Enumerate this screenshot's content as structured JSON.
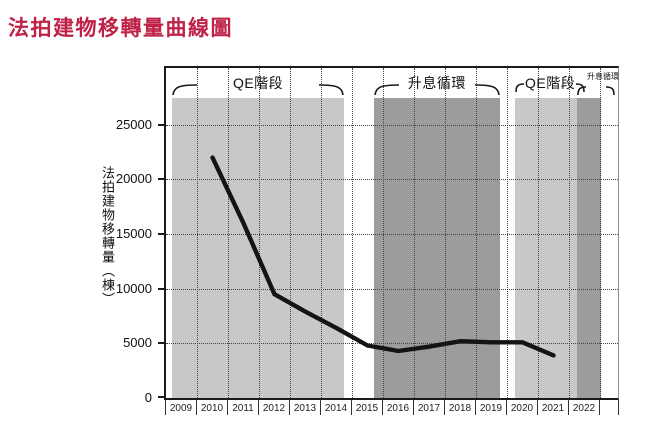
{
  "page_title": "法拍建物移轉量曲線圖",
  "colors": {
    "title_text": "#bf2147",
    "band_light": "#c8c8c8",
    "band_dark": "#9c9c9c",
    "line": "#141414"
  },
  "chart_data": {
    "type": "line",
    "title": "法拍建物移轉量曲線圖",
    "xlabel": "",
    "ylabel": "法拍建物移轉量（棟）",
    "x_categories": [
      "2009",
      "2010",
      "2011",
      "2012",
      "2013",
      "2014",
      "2015",
      "2016",
      "2017",
      "2018",
      "2019",
      "2020",
      "2021",
      "2022"
    ],
    "y_ticks": [
      0,
      5000,
      10000,
      15000,
      20000,
      25000
    ],
    "ylim": [
      0,
      30200
    ],
    "grid": {
      "horizontal": "dotted",
      "vertical": "dotted"
    },
    "legend": "none",
    "series": [
      {
        "name": "法拍建物移轉量",
        "points": [
          {
            "year": 2010,
            "value": 22000
          },
          {
            "year": 2011,
            "value": 16000
          },
          {
            "year": 2012,
            "value": 9500
          },
          {
            "year": 2013,
            "value": 7900
          },
          {
            "year": 2014,
            "value": 6400
          },
          {
            "year": 2015,
            "value": 4800
          },
          {
            "year": 2016,
            "value": 4300
          },
          {
            "year": 2017,
            "value": 4700
          },
          {
            "year": 2018,
            "value": 5200
          },
          {
            "year": 2019,
            "value": 5100
          },
          {
            "year": 2020,
            "value": 5100
          },
          {
            "year": 2021,
            "value": 3900
          }
        ]
      }
    ],
    "bands": [
      {
        "label": "QE階段",
        "tone": "light",
        "from_year": 2009.2,
        "to_year": 2014.74
      },
      {
        "label": "升息循環",
        "tone": "dark",
        "from_year": 2015.71,
        "to_year": 2019.77
      },
      {
        "label": "QE階段",
        "tone": "light",
        "from_year": 2020.26,
        "to_year": 2022.26
      },
      {
        "label": "升息循環",
        "tone": "dark",
        "from_year": 2022.26,
        "to_year": 2023.03,
        "small_label": true
      }
    ]
  }
}
